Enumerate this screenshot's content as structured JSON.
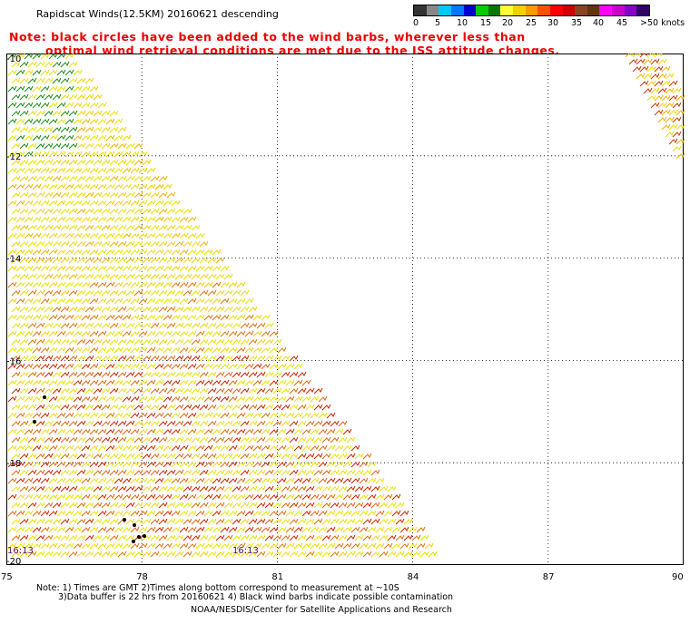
{
  "header": {
    "title": "Rapidscat Winds(12.5KM) 20160621 descending",
    "note_line1": "Note: black circles have been added to the wind barbs, wherever less than",
    "note_line2": "optimal wind retrieval conditions are met due to the ISS attitude changes."
  },
  "colorbar": {
    "colors": [
      "#333333",
      "#888888",
      "#00c8ff",
      "#0078ff",
      "#0000cc",
      "#00cc00",
      "#007700",
      "#ffff33",
      "#f5d000",
      "#ff9900",
      "#ff5000",
      "#ff0000",
      "#cc0000",
      "#884422",
      "#663311",
      "#ff00ff",
      "#cc00cc",
      "#8800cc",
      "#330066"
    ],
    "labels": [
      "0",
      "5",
      "10",
      "15",
      "20",
      "25",
      "30",
      "35",
      "40",
      "45",
      ">50 knots"
    ]
  },
  "map": {
    "y_labels": [
      "-10",
      "-12",
      "-14",
      "-16",
      "-18",
      "-20"
    ],
    "x_labels": [
      "75",
      "78",
      "81",
      "84",
      "87",
      "90"
    ],
    "x_range": [
      75,
      90
    ],
    "y_range": [
      -20,
      -10
    ],
    "gridlines": true,
    "time_labels": [
      "16:13",
      "16:13"
    ]
  },
  "footer": {
    "line1": "Note: 1) Times are GMT 2)Times along bottom correspond to measurement at ~10S",
    "line2": "3)Data buffer is 22 hrs from 20160621 4) Black wind barbs indicate possible contamination",
    "credit": "NOAA/NESDIS/Center for Satellite Applications and Research"
  }
}
